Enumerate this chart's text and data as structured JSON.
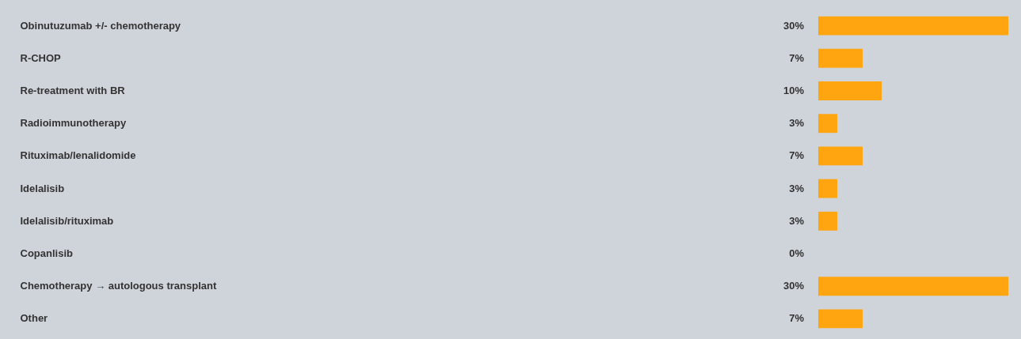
{
  "chart_data": {
    "type": "bar",
    "orientation": "horizontal",
    "data_labels": true,
    "categories": [
      "Obinutuzumab +/- chemotherapy",
      "R-CHOP",
      "Re-treatment with BR",
      "Radioimmunotherapy",
      "Rituximab/lenalidomide",
      "Idelalisib",
      "Idelalisib/rituximab",
      "Copanlisib",
      "Chemotherapy → autologous transplant",
      "Other"
    ],
    "values": [
      30,
      7,
      10,
      3,
      7,
      3,
      3,
      0,
      30,
      7
    ],
    "value_labels": [
      "30%",
      "7%",
      "10%",
      "3%",
      "7%",
      "3%",
      "3%",
      "0%",
      "30%",
      "7%"
    ],
    "color": "#ffa50f"
  }
}
